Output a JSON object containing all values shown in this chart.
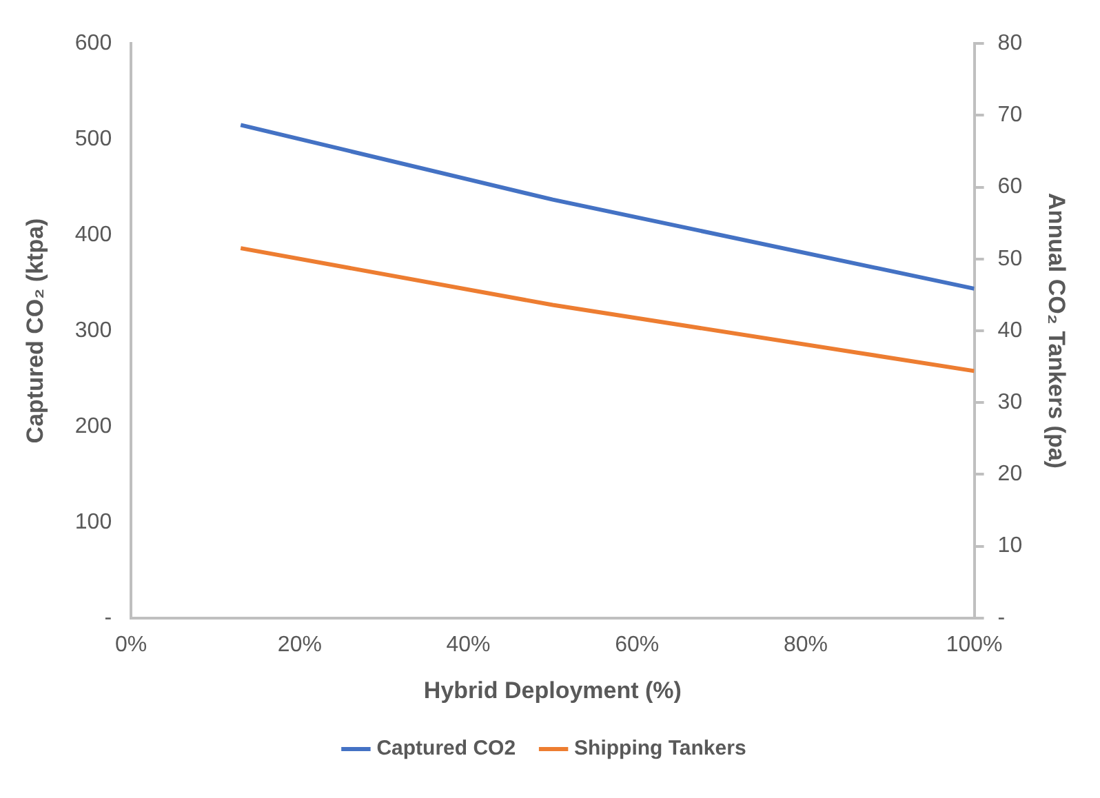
{
  "chart_data": {
    "type": "line",
    "xlabel": "Hybrid Deployment (%)",
    "ylabel": "Captured CO₂ (ktpa)",
    "y2label": "Annual CO₂ Tankers (pa)",
    "x": [
      13,
      50,
      100
    ],
    "xlim": [
      0,
      100
    ],
    "xticks": [
      {
        "value": 0,
        "label": "0%"
      },
      {
        "value": 20,
        "label": "20%"
      },
      {
        "value": 40,
        "label": "40%"
      },
      {
        "value": 60,
        "label": "60%"
      },
      {
        "value": 80,
        "label": "80%"
      },
      {
        "value": 100,
        "label": "100%"
      }
    ],
    "ylim": [
      0,
      600
    ],
    "yticks": [
      {
        "value": 0,
        "label": "-"
      },
      100,
      200,
      300,
      400,
      500,
      600
    ],
    "y2lim": [
      0,
      80
    ],
    "y2ticks": [
      {
        "value": 0,
        "label": "-"
      },
      10,
      20,
      30,
      40,
      50,
      60,
      70,
      80
    ],
    "series": [
      {
        "name": "Captured CO2",
        "color": "#4472c4",
        "values": [
          515,
          437,
          344
        ]
      },
      {
        "name": "Shipping Tankers",
        "color": "#ed7d31",
        "values": [
          51.5,
          43.6,
          34.4
        ],
        "axis": "y2"
      }
    ],
    "grid": false,
    "legend": "bottom",
    "marker": "none",
    "line_style": "solid"
  }
}
